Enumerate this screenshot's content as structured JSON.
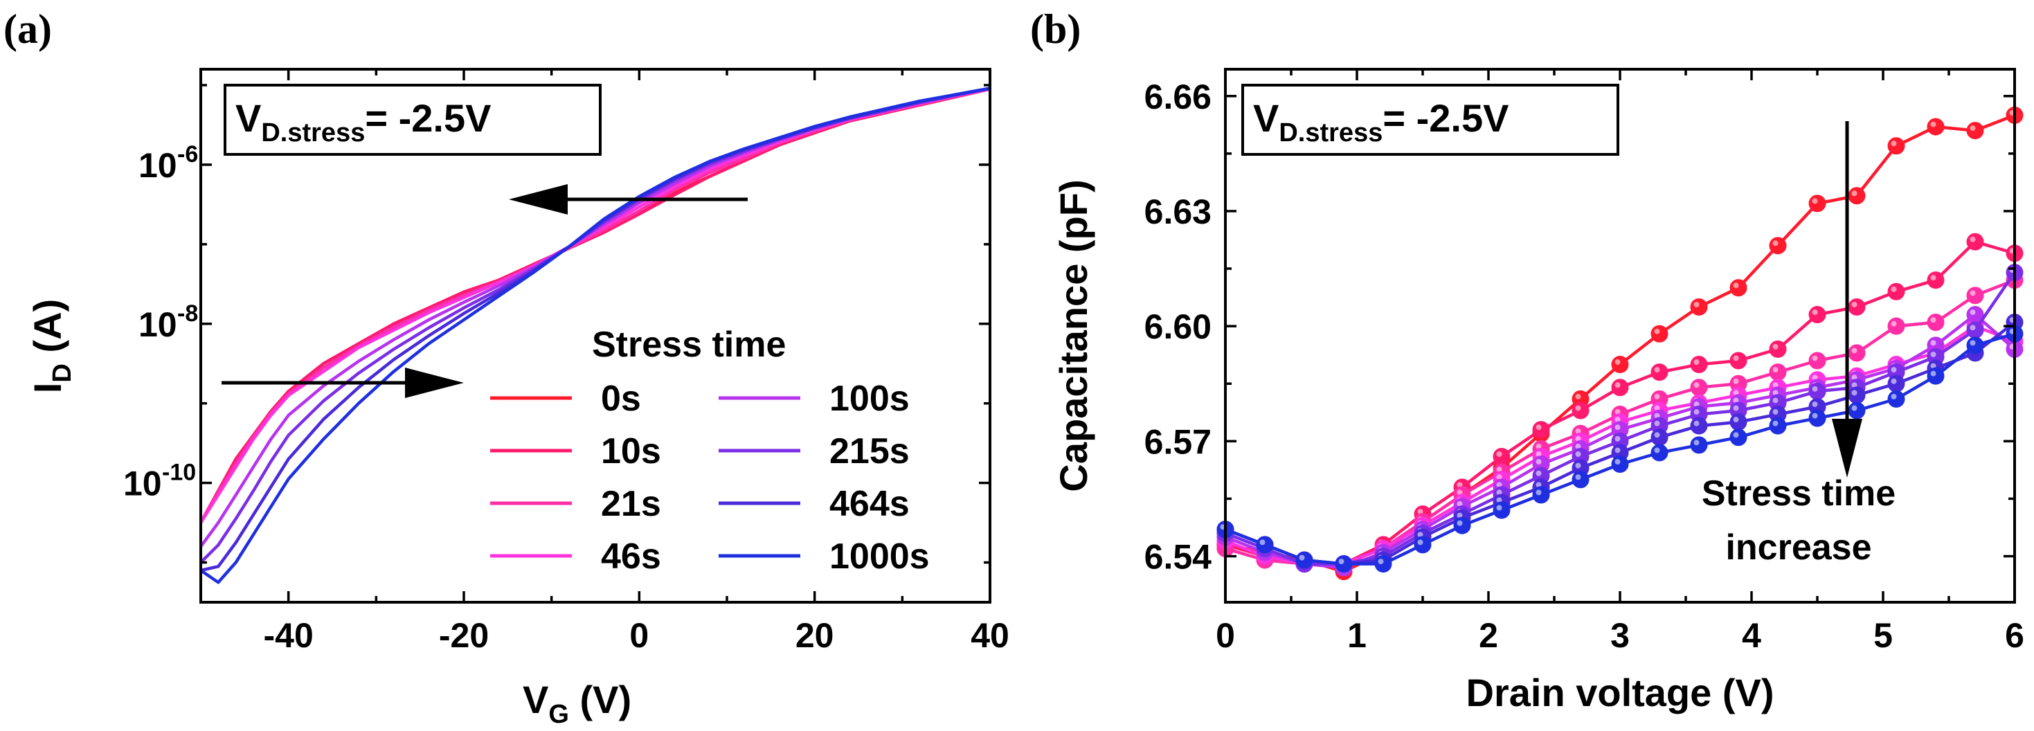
{
  "chart_data": [
    {
      "panel": "(a)",
      "type": "line",
      "ylabel_main": "I",
      "ylabel_sub": "D",
      "ylabel_unit": " (A)",
      "xlabel_main": "V",
      "xlabel_sub": "G",
      "xlabel_unit": " (V)",
      "xlim": [
        -50,
        40
      ],
      "ylim_log10": [
        -11.5,
        -4.8
      ],
      "yscale": "log",
      "xticks": [
        -40,
        -20,
        0,
        20,
        40
      ],
      "xtick_labels": [
        "-40",
        "-20",
        "0",
        "20",
        "40"
      ],
      "yticks_log10": [
        -10,
        -8,
        -6
      ],
      "ytick_base": "10",
      "ytick_exps": [
        "-10",
        "-8",
        "-6"
      ],
      "inset_main": "V",
      "inset_sub": "D.stress",
      "inset_rest": "= -2.5V",
      "legend_title": "Stress time",
      "legend_position": "lower-right",
      "x": [
        -50,
        -48,
        -46,
        -44,
        -42,
        -40,
        -36,
        -32,
        -28,
        -24,
        -20,
        -16,
        -12,
        -8,
        -4,
        0,
        4,
        8,
        12,
        16,
        20,
        24,
        28,
        32,
        36,
        40
      ],
      "series": [
        {
          "name": "0s",
          "color": "#ff1a2e",
          "log10_I": [
            -10.5,
            -10.1,
            -9.7,
            -9.4,
            -9.1,
            -8.85,
            -8.5,
            -8.25,
            -8.0,
            -7.8,
            -7.6,
            -7.45,
            -7.25,
            -7.05,
            -6.85,
            -6.6,
            -6.35,
            -6.15,
            -5.95,
            -5.75,
            -5.6,
            -5.45,
            -5.35,
            -5.25,
            -5.15,
            -5.05
          ]
        },
        {
          "name": "10s",
          "color": "#ff1a6e",
          "log10_I": [
            -10.5,
            -10.1,
            -9.7,
            -9.4,
            -9.1,
            -8.85,
            -8.5,
            -8.25,
            -8.0,
            -7.8,
            -7.6,
            -7.45,
            -7.25,
            -7.05,
            -6.85,
            -6.62,
            -6.38,
            -6.15,
            -5.95,
            -5.75,
            -5.6,
            -5.45,
            -5.35,
            -5.25,
            -5.15,
            -5.05
          ]
        },
        {
          "name": "21s",
          "color": "#ff2ea6",
          "log10_I": [
            -10.5,
            -10.12,
            -9.75,
            -9.42,
            -9.12,
            -8.88,
            -8.55,
            -8.28,
            -8.04,
            -7.83,
            -7.64,
            -7.47,
            -7.27,
            -7.05,
            -6.82,
            -6.58,
            -6.32,
            -6.1,
            -5.92,
            -5.73,
            -5.58,
            -5.44,
            -5.34,
            -5.24,
            -5.14,
            -5.05
          ]
        },
        {
          "name": "46s",
          "color": "#ff33dd",
          "log10_I": [
            -10.5,
            -10.15,
            -9.8,
            -9.45,
            -9.15,
            -8.9,
            -8.6,
            -8.3,
            -8.08,
            -7.86,
            -7.67,
            -7.48,
            -7.27,
            -7.03,
            -6.78,
            -6.53,
            -6.28,
            -6.06,
            -5.88,
            -5.71,
            -5.56,
            -5.43,
            -5.33,
            -5.23,
            -5.14,
            -5.05
          ]
        },
        {
          "name": "100s",
          "color": "#b833ee",
          "log10_I": [
            -10.8,
            -10.5,
            -10.15,
            -9.8,
            -9.45,
            -9.15,
            -8.78,
            -8.47,
            -8.2,
            -7.95,
            -7.73,
            -7.52,
            -7.29,
            -7.03,
            -6.75,
            -6.48,
            -6.24,
            -6.02,
            -5.85,
            -5.69,
            -5.55,
            -5.42,
            -5.32,
            -5.22,
            -5.13,
            -5.04
          ]
        },
        {
          "name": "215s",
          "color": "#7a2ee6",
          "log10_I": [
            -11.0,
            -10.78,
            -10.45,
            -10.1,
            -9.73,
            -9.4,
            -8.97,
            -8.62,
            -8.32,
            -8.05,
            -7.8,
            -7.57,
            -7.31,
            -7.03,
            -6.72,
            -6.44,
            -6.2,
            -5.99,
            -5.83,
            -5.68,
            -5.54,
            -5.42,
            -5.32,
            -5.22,
            -5.13,
            -5.04
          ]
        },
        {
          "name": "464s",
          "color": "#4a2ad9",
          "log10_I": [
            -11.1,
            -11.05,
            -10.75,
            -10.4,
            -10.05,
            -9.7,
            -9.2,
            -8.8,
            -8.45,
            -8.15,
            -7.87,
            -7.61,
            -7.33,
            -7.03,
            -6.7,
            -6.42,
            -6.18,
            -5.97,
            -5.81,
            -5.67,
            -5.53,
            -5.41,
            -5.31,
            -5.21,
            -5.12,
            -5.04
          ]
        },
        {
          "name": "1000s",
          "color": "#1f2fe0",
          "log10_I": [
            -11.1,
            -11.25,
            -11.0,
            -10.65,
            -10.3,
            -9.95,
            -9.45,
            -9.0,
            -8.6,
            -8.25,
            -7.95,
            -7.65,
            -7.35,
            -7.03,
            -6.68,
            -6.4,
            -6.16,
            -5.96,
            -5.8,
            -5.66,
            -5.52,
            -5.4,
            -5.3,
            -5.2,
            -5.12,
            -5.04
          ]
        }
      ],
      "annotations": [
        "arrow pointing left near I=10^-6.3",
        "arrow pointing right near I=10^-8.6"
      ]
    },
    {
      "panel": "(b)",
      "type": "line",
      "xlabel": "Drain voltage (V)",
      "ylabel": "Capacitance (pF)",
      "xlim": [
        0,
        6
      ],
      "ylim": [
        6.528,
        6.667
      ],
      "xticks": [
        0,
        1,
        2,
        3,
        4,
        5,
        6
      ],
      "xtick_labels": [
        "0",
        "1",
        "2",
        "3",
        "4",
        "5",
        "6"
      ],
      "yticks": [
        6.54,
        6.57,
        6.6,
        6.63,
        6.66
      ],
      "ytick_labels": [
        "6.54",
        "6.57",
        "6.60",
        "6.63",
        "6.66"
      ],
      "inset_main": "V",
      "inset_sub": "D.stress",
      "inset_rest": "= -2.5V",
      "annotation_line1": "Stress time",
      "annotation_line2": "increase",
      "x": [
        0,
        0.3,
        0.6,
        0.9,
        1.2,
        1.5,
        1.8,
        2.1,
        2.4,
        2.7,
        3.0,
        3.3,
        3.6,
        3.9,
        4.2,
        4.5,
        4.8,
        5.1,
        5.4,
        5.7,
        6.0
      ],
      "series": [
        {
          "name": "0s",
          "color": "#ff1a2e",
          "values": [
            6.543,
            6.541,
            6.539,
            6.536,
            6.541,
            6.549,
            6.556,
            6.563,
            6.572,
            6.581,
            6.59,
            6.598,
            6.605,
            6.61,
            6.621,
            6.632,
            6.634,
            6.647,
            6.652,
            6.651,
            6.655
          ]
        },
        {
          "name": "10s",
          "color": "#ff1a6e",
          "values": [
            6.543,
            6.54,
            6.538,
            6.538,
            6.543,
            6.551,
            6.558,
            6.566,
            6.573,
            6.578,
            6.584,
            6.588,
            6.59,
            6.591,
            6.594,
            6.603,
            6.605,
            6.609,
            6.612,
            6.622,
            6.619
          ]
        },
        {
          "name": "21s",
          "color": "#ff2ea6",
          "values": [
            6.542,
            6.539,
            6.538,
            6.538,
            6.542,
            6.549,
            6.556,
            6.562,
            6.568,
            6.572,
            6.577,
            6.581,
            6.584,
            6.585,
            6.588,
            6.591,
            6.593,
            6.6,
            6.601,
            6.608,
            6.612
          ]
        },
        {
          "name": "46s",
          "color": "#ff33dd",
          "values": [
            6.544,
            6.54,
            6.538,
            6.538,
            6.542,
            6.548,
            6.554,
            6.56,
            6.566,
            6.57,
            6.575,
            6.578,
            6.58,
            6.582,
            6.584,
            6.586,
            6.587,
            6.59,
            6.593,
            6.6,
            6.596
          ]
        },
        {
          "name": "100s",
          "color": "#b833ee",
          "values": [
            6.545,
            6.541,
            6.538,
            6.537,
            6.541,
            6.547,
            6.553,
            6.558,
            6.564,
            6.568,
            6.573,
            6.576,
            6.579,
            6.58,
            6.582,
            6.584,
            6.586,
            6.589,
            6.595,
            6.603,
            6.594
          ]
        },
        {
          "name": "215s",
          "color": "#7a2ee6",
          "values": [
            6.546,
            6.542,
            6.538,
            6.538,
            6.54,
            6.546,
            6.551,
            6.556,
            6.561,
            6.566,
            6.57,
            6.574,
            6.577,
            6.578,
            6.58,
            6.583,
            6.584,
            6.588,
            6.592,
            6.599,
            6.614
          ]
        },
        {
          "name": "464s",
          "color": "#4a2ad9",
          "values": [
            6.547,
            6.543,
            6.539,
            6.538,
            6.539,
            6.545,
            6.55,
            6.554,
            6.558,
            6.563,
            6.567,
            6.571,
            6.574,
            6.575,
            6.577,
            6.579,
            6.582,
            6.585,
            6.589,
            6.593,
            6.601
          ]
        },
        {
          "name": "1000s",
          "color": "#1f2fe0",
          "values": [
            6.547,
            6.543,
            6.539,
            6.538,
            6.538,
            6.543,
            6.548,
            6.552,
            6.556,
            6.56,
            6.564,
            6.567,
            6.569,
            6.571,
            6.574,
            6.576,
            6.578,
            6.581,
            6.587,
            6.595,
            6.598
          ]
        }
      ]
    }
  ]
}
